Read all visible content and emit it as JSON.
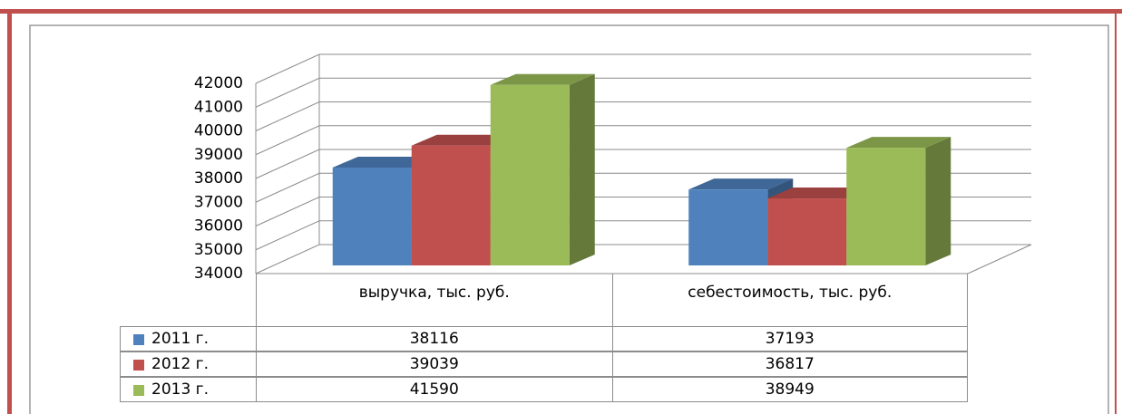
{
  "chart_data": {
    "type": "bar3d",
    "categories": [
      "выручка, тыс. руб.",
      "себестоимость, тыс. руб."
    ],
    "series": [
      {
        "name": "2011 г.",
        "color": "#4f81bd",
        "values": [
          38116,
          37193
        ]
      },
      {
        "name": "2012 г.",
        "color": "#c0504d",
        "values": [
          39039,
          36817
        ]
      },
      {
        "name": "2013 г.",
        "color": "#9bbb59",
        "values": [
          41590,
          38949
        ]
      }
    ],
    "ylim": [
      34000,
      42000
    ],
    "yticks": [
      34000,
      35000,
      36000,
      37000,
      38000,
      39000,
      40000,
      41000,
      42000
    ],
    "grid": true,
    "data_table": true
  }
}
